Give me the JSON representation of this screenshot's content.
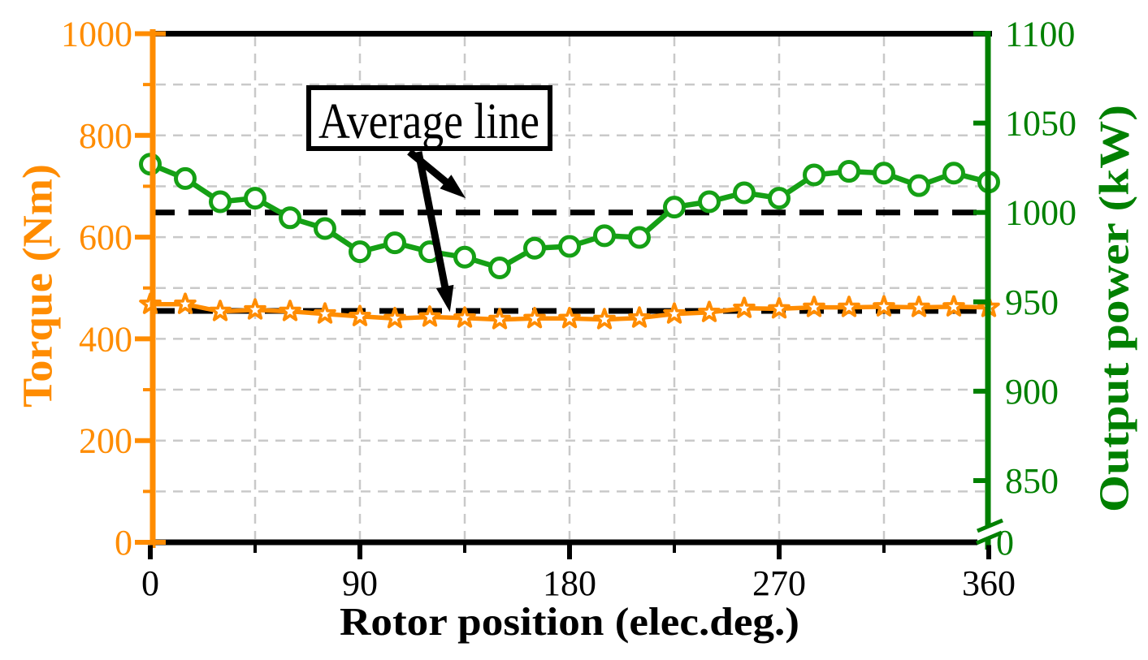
{
  "chart_data": {
    "type": "line",
    "title": "",
    "xlabel": "Rotor position (elec.deg.)",
    "x": [
      0,
      15,
      30,
      45,
      60,
      75,
      90,
      105,
      120,
      135,
      150,
      165,
      180,
      195,
      210,
      225,
      240,
      255,
      270,
      285,
      300,
      315,
      330,
      345,
      360
    ],
    "x_range": [
      0,
      360
    ],
    "x_major_ticks": [
      0,
      90,
      180,
      270,
      360
    ],
    "x_minor_tick_step": 45,
    "left_axis": {
      "label": "Torque (Nm)",
      "color": "#FF8C00",
      "range": [
        0,
        1000
      ],
      "major_ticks": [
        0,
        200,
        400,
        600,
        800,
        1000
      ],
      "minor_tick_step": 100
    },
    "right_axis": {
      "label": "Output power (kW)",
      "color": "#008000",
      "displayed_range": [
        850,
        1100
      ],
      "major_ticks": [
        850,
        900,
        950,
        1000,
        1050,
        1100
      ],
      "axis_break": true,
      "zero_label": "0"
    },
    "series": [
      {
        "name": "torque",
        "axis": "left",
        "color": "#FF8C00",
        "marker": "star",
        "values": [
          468,
          468,
          454,
          457,
          454,
          449,
          444,
          440,
          443,
          441,
          438,
          440,
          440,
          438,
          441,
          449,
          452,
          460,
          459,
          462,
          462,
          463,
          462,
          463,
          462
        ]
      },
      {
        "name": "output-power",
        "axis": "right",
        "color": "#15A015",
        "marker": "circle",
        "values": [
          1027,
          1019,
          1006,
          1008,
          997,
          991,
          978,
          983,
          978,
          975,
          969,
          980,
          981,
          987,
          986,
          1003,
          1006,
          1011,
          1008,
          1021,
          1023,
          1022,
          1015,
          1022,
          1017
        ]
      }
    ],
    "average_lines": [
      {
        "series": "torque",
        "axis": "left",
        "value": 455,
        "style": "dashed",
        "color": "#000000"
      },
      {
        "series": "output-power",
        "axis": "right",
        "value": 1000,
        "style": "dashed",
        "color": "#000000"
      }
    ],
    "annotation": {
      "label": "Average line"
    },
    "grid": {
      "shown": true,
      "color": "#c9c9c9",
      "style": "dashed"
    }
  }
}
